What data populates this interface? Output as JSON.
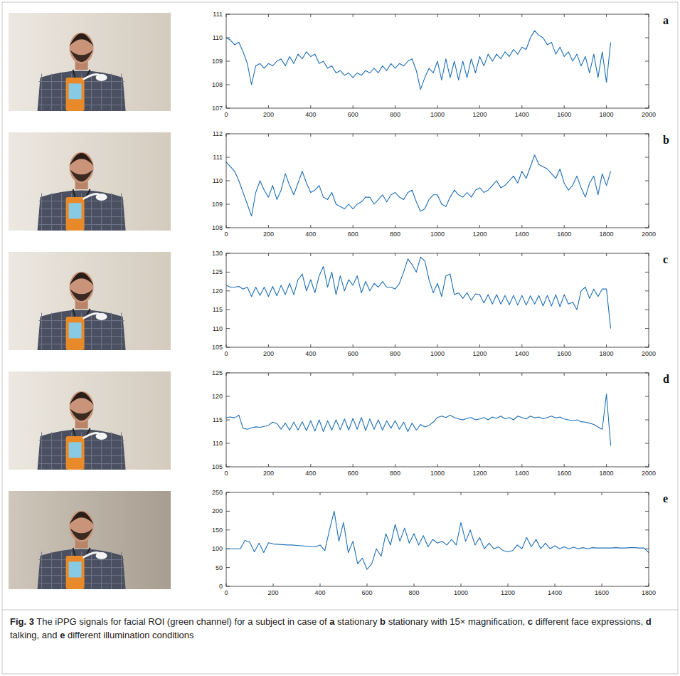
{
  "chart_data": [
    {
      "type": "line",
      "title": "a",
      "color": "#1f6fb5",
      "x": [
        0,
        20,
        40,
        60,
        80,
        100,
        120,
        140,
        160,
        180,
        200,
        220,
        240,
        260,
        280,
        300,
        320,
        340,
        360,
        380,
        400,
        420,
        440,
        460,
        480,
        500,
        520,
        540,
        560,
        580,
        600,
        620,
        640,
        660,
        680,
        700,
        720,
        740,
        760,
        780,
        800,
        820,
        840,
        860,
        880,
        900,
        920,
        940,
        960,
        980,
        1000,
        1020,
        1040,
        1060,
        1080,
        1100,
        1120,
        1140,
        1160,
        1180,
        1200,
        1220,
        1240,
        1260,
        1280,
        1300,
        1320,
        1340,
        1360,
        1380,
        1400,
        1420,
        1440,
        1460,
        1480,
        1500,
        1520,
        1540,
        1560,
        1580,
        1600,
        1620,
        1640,
        1660,
        1680,
        1700,
        1720,
        1740,
        1760,
        1780,
        1800,
        1820
      ],
      "values": [
        110.0,
        109.9,
        109.7,
        109.8,
        109.4,
        108.9,
        108.0,
        108.8,
        108.9,
        108.7,
        108.9,
        108.8,
        109.0,
        109.1,
        108.8,
        109.2,
        108.9,
        109.3,
        109.1,
        109.4,
        109.2,
        109.3,
        108.9,
        109.0,
        108.7,
        108.8,
        108.5,
        108.6,
        108.4,
        108.5,
        108.3,
        108.5,
        108.4,
        108.6,
        108.5,
        108.7,
        108.5,
        108.8,
        108.6,
        108.9,
        108.7,
        108.9,
        108.8,
        109.0,
        109.1,
        108.6,
        107.8,
        108.3,
        108.7,
        108.5,
        109.0,
        108.2,
        109.1,
        108.3,
        109.0,
        108.2,
        109.0,
        108.3,
        109.1,
        108.5,
        109.2,
        108.8,
        109.3,
        109.0,
        109.3,
        109.1,
        109.4,
        109.2,
        109.5,
        109.3,
        109.6,
        109.5,
        110.0,
        110.3,
        110.1,
        110.0,
        109.7,
        109.8,
        109.3,
        109.6,
        109.2,
        109.4,
        109.0,
        109.3,
        108.8,
        109.2,
        108.5,
        109.3,
        108.3,
        109.4,
        108.1,
        109.8
      ],
      "xlim": [
        0,
        2000
      ],
      "xticks": [
        0,
        200,
        400,
        600,
        800,
        1000,
        1200,
        1400,
        1600,
        1800,
        2000
      ],
      "ylim": [
        107,
        111
      ],
      "yticks": [
        107,
        108,
        109,
        110,
        111
      ],
      "grid": false
    },
    {
      "type": "line",
      "title": "b",
      "color": "#1f6fb5",
      "x": [
        0,
        20,
        40,
        60,
        80,
        100,
        120,
        140,
        160,
        180,
        200,
        220,
        240,
        260,
        280,
        300,
        320,
        340,
        360,
        380,
        400,
        420,
        440,
        460,
        480,
        500,
        520,
        540,
        560,
        580,
        600,
        620,
        640,
        660,
        680,
        700,
        720,
        740,
        760,
        780,
        800,
        820,
        840,
        860,
        880,
        900,
        920,
        940,
        960,
        980,
        1000,
        1020,
        1040,
        1060,
        1080,
        1100,
        1120,
        1140,
        1160,
        1180,
        1200,
        1220,
        1240,
        1260,
        1280,
        1300,
        1320,
        1340,
        1360,
        1380,
        1400,
        1420,
        1440,
        1460,
        1480,
        1500,
        1520,
        1540,
        1560,
        1580,
        1600,
        1620,
        1640,
        1660,
        1680,
        1700,
        1720,
        1740,
        1760,
        1780,
        1800,
        1820
      ],
      "values": [
        110.8,
        110.6,
        110.4,
        110.0,
        109.5,
        109.0,
        108.5,
        109.5,
        110.0,
        109.6,
        109.3,
        109.8,
        109.2,
        109.6,
        110.3,
        109.8,
        109.4,
        109.9,
        110.4,
        109.9,
        109.5,
        109.6,
        109.8,
        109.3,
        109.2,
        109.5,
        109.0,
        108.9,
        108.8,
        109.0,
        108.8,
        109.0,
        109.1,
        109.3,
        109.3,
        109.0,
        109.2,
        109.4,
        109.1,
        109.4,
        109.5,
        109.3,
        109.2,
        109.5,
        109.6,
        109.1,
        108.7,
        108.8,
        109.2,
        109.4,
        109.4,
        109.0,
        108.9,
        109.3,
        109.6,
        109.4,
        109.3,
        109.5,
        109.3,
        109.6,
        109.7,
        109.5,
        109.6,
        109.8,
        110.0,
        109.7,
        109.8,
        110.0,
        110.2,
        109.9,
        110.4,
        110.1,
        110.6,
        111.1,
        110.7,
        110.6,
        110.5,
        110.3,
        110.1,
        110.5,
        109.9,
        109.6,
        109.8,
        110.2,
        109.7,
        109.3,
        109.9,
        110.2,
        109.4,
        110.3,
        109.8,
        110.4
      ],
      "xlim": [
        0,
        2000
      ],
      "xticks": [
        0,
        200,
        400,
        600,
        800,
        1000,
        1200,
        1400,
        1600,
        1800,
        2000
      ],
      "ylim": [
        108,
        112
      ],
      "yticks": [
        108,
        109,
        110,
        111,
        112
      ],
      "grid": false
    },
    {
      "type": "line",
      "title": "c",
      "color": "#1f6fb5",
      "x": [
        0,
        20,
        40,
        60,
        80,
        100,
        120,
        140,
        160,
        180,
        200,
        220,
        240,
        260,
        280,
        300,
        320,
        340,
        360,
        380,
        400,
        420,
        440,
        460,
        480,
        500,
        520,
        540,
        560,
        580,
        600,
        620,
        640,
        660,
        680,
        700,
        720,
        740,
        760,
        780,
        800,
        820,
        840,
        860,
        880,
        900,
        920,
        940,
        960,
        980,
        1000,
        1020,
        1040,
        1060,
        1080,
        1100,
        1120,
        1140,
        1160,
        1180,
        1200,
        1220,
        1240,
        1260,
        1280,
        1300,
        1320,
        1340,
        1360,
        1380,
        1400,
        1420,
        1440,
        1460,
        1480,
        1500,
        1520,
        1540,
        1560,
        1580,
        1600,
        1620,
        1640,
        1660,
        1680,
        1700,
        1720,
        1740,
        1760,
        1780,
        1800,
        1820
      ],
      "values": [
        121.5,
        121.0,
        121.0,
        121.2,
        120.5,
        121.0,
        118.5,
        121.0,
        118.8,
        121.0,
        118.5,
        121.2,
        118.7,
        121.5,
        119.0,
        122.0,
        119.0,
        123.0,
        124.5,
        120.0,
        123.0,
        119.5,
        124.0,
        126.5,
        121.0,
        125.0,
        119.0,
        124.0,
        120.0,
        123.0,
        121.5,
        124.0,
        119.5,
        122.5,
        120.0,
        122.0,
        121.0,
        122.5,
        121.0,
        121.0,
        120.5,
        122.0,
        125.0,
        128.5,
        127.0,
        125.0,
        129.0,
        128.0,
        123.0,
        119.5,
        122.0,
        118.5,
        124.0,
        124.5,
        119.0,
        119.5,
        118.0,
        119.5,
        117.5,
        119.2,
        119.0,
        116.8,
        119.0,
        116.5,
        119.0,
        116.5,
        118.8,
        116.3,
        118.8,
        116.2,
        118.8,
        116.2,
        118.7,
        116.5,
        118.8,
        116.0,
        118.8,
        116.0,
        119.0,
        115.8,
        119.0,
        116.5,
        117.0,
        115.0,
        120.0,
        121.0,
        118.0,
        120.5,
        118.5,
        120.5,
        120.5,
        110.0
      ],
      "xlim": [
        0,
        2000
      ],
      "xticks": [
        0,
        200,
        400,
        600,
        800,
        1000,
        1200,
        1400,
        1600,
        1800,
        2000
      ],
      "ylim": [
        105,
        130
      ],
      "yticks": [
        105,
        110,
        115,
        120,
        125,
        130
      ],
      "grid": false
    },
    {
      "type": "line",
      "title": "d",
      "color": "#1f6fb5",
      "x": [
        0,
        20,
        40,
        60,
        80,
        100,
        120,
        140,
        160,
        180,
        200,
        220,
        240,
        260,
        280,
        300,
        320,
        340,
        360,
        380,
        400,
        420,
        440,
        460,
        480,
        500,
        520,
        540,
        560,
        580,
        600,
        620,
        640,
        660,
        680,
        700,
        720,
        740,
        760,
        780,
        800,
        820,
        840,
        860,
        880,
        900,
        920,
        940,
        960,
        980,
        1000,
        1020,
        1040,
        1060,
        1080,
        1100,
        1120,
        1140,
        1160,
        1180,
        1200,
        1220,
        1240,
        1260,
        1280,
        1300,
        1320,
        1340,
        1360,
        1380,
        1400,
        1420,
        1440,
        1460,
        1480,
        1500,
        1520,
        1540,
        1560,
        1580,
        1600,
        1620,
        1640,
        1660,
        1680,
        1700,
        1720,
        1740,
        1760,
        1780,
        1800,
        1820
      ],
      "values": [
        115.5,
        115.6,
        115.4,
        116.0,
        113.2,
        113.0,
        113.3,
        113.5,
        113.4,
        113.6,
        113.8,
        114.5,
        114.2,
        113.0,
        114.3,
        112.8,
        114.5,
        112.8,
        114.6,
        112.7,
        114.8,
        112.6,
        115.0,
        112.5,
        114.8,
        112.8,
        115.0,
        112.9,
        115.2,
        112.8,
        115.3,
        113.0,
        115.5,
        112.7,
        115.2,
        113.0,
        115.0,
        112.8,
        114.8,
        113.2,
        114.8,
        113.0,
        114.5,
        112.5,
        114.3,
        112.8,
        114.0,
        113.5,
        113.8,
        114.5,
        115.5,
        115.8,
        115.5,
        116.0,
        115.5,
        115.2,
        115.0,
        115.3,
        115.5,
        115.0,
        115.2,
        115.5,
        115.0,
        115.6,
        115.3,
        115.8,
        115.2,
        115.5,
        115.0,
        115.8,
        115.5,
        115.2,
        115.8,
        115.4,
        115.6,
        115.2,
        115.5,
        115.8,
        115.4,
        115.6,
        115.2,
        115.0,
        114.8,
        115.0,
        114.6,
        114.5,
        114.3,
        114.0,
        113.5,
        113.0,
        120.5,
        109.5
      ],
      "xlim": [
        0,
        2000
      ],
      "xticks": [
        0,
        200,
        400,
        600,
        800,
        1000,
        1200,
        1400,
        1600,
        1800,
        2000
      ],
      "ylim": [
        105,
        125
      ],
      "yticks": [
        105,
        110,
        115,
        120,
        125
      ],
      "grid": false
    },
    {
      "type": "line",
      "title": "e",
      "color": "#1f6fb5",
      "x": [
        0,
        20,
        40,
        60,
        80,
        100,
        120,
        140,
        160,
        180,
        200,
        220,
        240,
        260,
        280,
        300,
        320,
        340,
        360,
        380,
        400,
        420,
        440,
        460,
        480,
        500,
        520,
        540,
        560,
        580,
        600,
        620,
        640,
        660,
        680,
        700,
        720,
        740,
        760,
        780,
        800,
        820,
        840,
        860,
        880,
        900,
        920,
        940,
        960,
        980,
        1000,
        1020,
        1040,
        1060,
        1080,
        1100,
        1120,
        1140,
        1160,
        1180,
        1200,
        1220,
        1240,
        1260,
        1280,
        1300,
        1320,
        1340,
        1360,
        1380,
        1400,
        1420,
        1440,
        1460,
        1480,
        1500,
        1520,
        1540,
        1560,
        1580,
        1600,
        1620,
        1640,
        1660,
        1680,
        1700,
        1720,
        1740,
        1760,
        1780,
        1800
      ],
      "values": [
        100,
        100,
        100,
        100,
        122,
        118,
        92,
        115,
        90,
        116,
        113,
        112,
        111,
        110,
        110,
        109,
        108,
        107,
        106,
        105,
        110,
        95,
        150,
        200,
        120,
        170,
        90,
        120,
        60,
        75,
        45,
        60,
        100,
        80,
        140,
        110,
        165,
        120,
        155,
        115,
        140,
        110,
        135,
        105,
        125,
        115,
        120,
        110,
        125,
        110,
        170,
        120,
        150,
        110,
        130,
        100,
        115,
        100,
        105,
        95,
        92,
        95,
        110,
        100,
        130,
        105,
        125,
        100,
        115,
        100,
        108,
        100,
        105,
        100,
        104,
        100,
        103,
        100,
        103,
        102,
        102,
        102,
        102,
        103,
        102,
        102,
        103,
        103,
        102,
        102,
        90
      ],
      "xlim": [
        0,
        1800
      ],
      "xticks": [
        0,
        200,
        400,
        600,
        800,
        1000,
        1200,
        1400,
        1600,
        1800
      ],
      "ylim": [
        0,
        250
      ],
      "yticks": [
        0,
        50,
        100,
        150,
        200,
        250
      ],
      "grid": false
    }
  ],
  "caption": {
    "label": "Fig. 3",
    "intro": "The iPPG signals for facial ROI (green channel) for a subject in case of",
    "items": [
      {
        "letter": "a",
        "text": "stationary"
      },
      {
        "letter": "b",
        "text": "stationary with 15× magnification,"
      },
      {
        "letter": "c",
        "text": "different face expressions,"
      },
      {
        "letter": "d",
        "text": "talking, and"
      },
      {
        "letter": "e",
        "text": "different illumination conditions"
      }
    ]
  }
}
